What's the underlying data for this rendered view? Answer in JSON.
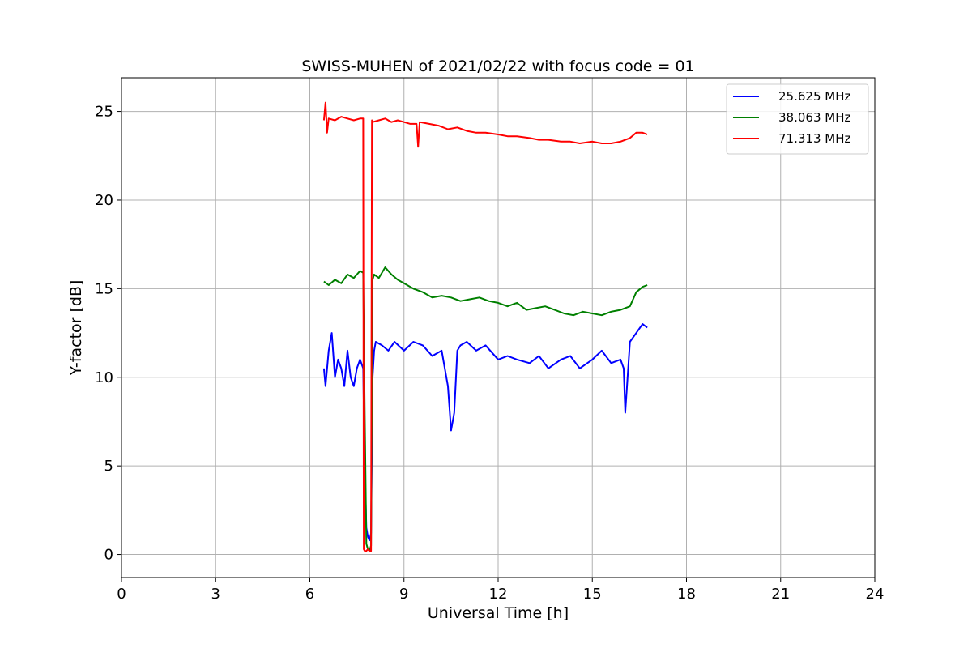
{
  "chart_data": {
    "type": "line",
    "title": "SWISS-MUHEN of 2021/02/22 with focus code = 01",
    "xlabel": "Universal Time [h]",
    "ylabel": "Y-factor [dB]",
    "xlim": [
      0,
      24
    ],
    "ylim": [
      -1.3,
      26.9
    ],
    "xticks": [
      0,
      3,
      6,
      9,
      12,
      15,
      18,
      21,
      24
    ],
    "yticks": [
      0,
      5,
      10,
      15,
      20,
      25
    ],
    "grid": true,
    "legend_position": "top-right",
    "series": [
      {
        "name": "25.625 MHz",
        "color": "#0000ff",
        "x": [
          6.45,
          6.5,
          6.6,
          6.7,
          6.8,
          6.9,
          7.0,
          7.1,
          7.2,
          7.3,
          7.4,
          7.5,
          7.6,
          7.7,
          7.75,
          7.8,
          7.85,
          7.9,
          7.95,
          8.0,
          8.05,
          8.1,
          8.3,
          8.5,
          8.7,
          9.0,
          9.3,
          9.6,
          9.9,
          10.2,
          10.4,
          10.5,
          10.6,
          10.7,
          10.8,
          11.0,
          11.3,
          11.6,
          12.0,
          12.3,
          12.6,
          13.0,
          13.3,
          13.6,
          14.0,
          14.3,
          14.6,
          15.0,
          15.3,
          15.6,
          15.9,
          16.0,
          16.05,
          16.2,
          16.4,
          16.6,
          16.75
        ],
        "y": [
          10.5,
          9.5,
          11.5,
          12.5,
          10.0,
          11.0,
          10.5,
          9.5,
          11.5,
          10.0,
          9.5,
          10.5,
          11.0,
          10.5,
          5.0,
          1.5,
          1.0,
          0.8,
          1.2,
          10.0,
          11.5,
          12.0,
          11.8,
          11.5,
          12.0,
          11.5,
          12.0,
          11.8,
          11.2,
          11.5,
          9.5,
          7.0,
          8.0,
          11.5,
          11.8,
          12.0,
          11.5,
          11.8,
          11.0,
          11.2,
          11.0,
          10.8,
          11.2,
          10.5,
          11.0,
          11.2,
          10.5,
          11.0,
          11.5,
          10.8,
          11.0,
          10.5,
          8.0,
          12.0,
          12.5,
          13.0,
          12.8
        ]
      },
      {
        "name": "38.063 MHz",
        "color": "#008000",
        "x": [
          6.45,
          6.6,
          6.8,
          7.0,
          7.2,
          7.4,
          7.6,
          7.7,
          7.75,
          7.8,
          7.85,
          7.9,
          7.95,
          8.0,
          8.05,
          8.2,
          8.4,
          8.6,
          8.8,
          9.0,
          9.3,
          9.6,
          9.9,
          10.2,
          10.5,
          10.8,
          11.1,
          11.4,
          11.7,
          12.0,
          12.3,
          12.6,
          12.9,
          13.2,
          13.5,
          13.8,
          14.1,
          14.4,
          14.7,
          15.0,
          15.3,
          15.6,
          15.9,
          16.2,
          16.4,
          16.6,
          16.75
        ],
        "y": [
          15.4,
          15.2,
          15.5,
          15.3,
          15.8,
          15.6,
          16.0,
          15.9,
          8.0,
          0.6,
          0.3,
          0.2,
          0.5,
          15.5,
          15.8,
          15.6,
          16.2,
          15.8,
          15.5,
          15.3,
          15.0,
          14.8,
          14.5,
          14.6,
          14.5,
          14.3,
          14.4,
          14.5,
          14.3,
          14.2,
          14.0,
          14.2,
          13.8,
          13.9,
          14.0,
          13.8,
          13.6,
          13.5,
          13.7,
          13.6,
          13.5,
          13.7,
          13.8,
          14.0,
          14.8,
          15.1,
          15.2
        ]
      },
      {
        "name": "71.313 MHz",
        "color": "#ff0000",
        "x": [
          6.45,
          6.5,
          6.55,
          6.6,
          6.8,
          7.0,
          7.2,
          7.4,
          7.6,
          7.7,
          7.72,
          7.75,
          7.8,
          7.85,
          7.9,
          7.95,
          7.98,
          8.0,
          8.2,
          8.4,
          8.6,
          8.8,
          9.0,
          9.2,
          9.4,
          9.45,
          9.5,
          9.8,
          10.1,
          10.4,
          10.7,
          11.0,
          11.3,
          11.6,
          12.0,
          12.3,
          12.6,
          13.0,
          13.3,
          13.6,
          14.0,
          14.3,
          14.6,
          15.0,
          15.3,
          15.6,
          15.9,
          16.2,
          16.4,
          16.6,
          16.75
        ],
        "y": [
          24.5,
          25.5,
          23.8,
          24.6,
          24.5,
          24.7,
          24.6,
          24.5,
          24.6,
          24.6,
          0.3,
          0.2,
          0.2,
          0.3,
          0.2,
          0.2,
          24.5,
          24.4,
          24.5,
          24.6,
          24.4,
          24.5,
          24.4,
          24.3,
          24.3,
          23.0,
          24.4,
          24.3,
          24.2,
          24.0,
          24.1,
          23.9,
          23.8,
          23.8,
          23.7,
          23.6,
          23.6,
          23.5,
          23.4,
          23.4,
          23.3,
          23.3,
          23.2,
          23.3,
          23.2,
          23.2,
          23.3,
          23.5,
          23.8,
          23.8,
          23.7
        ]
      }
    ]
  }
}
